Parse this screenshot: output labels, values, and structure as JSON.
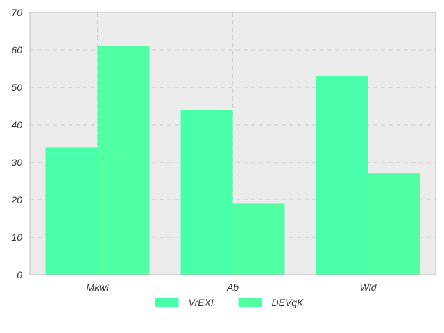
{
  "chart_data": {
    "type": "bar",
    "title": "",
    "xlabel": "",
    "ylabel": "",
    "categories": [
      "Mkwl",
      "Ab",
      "Wld"
    ],
    "series": [
      {
        "name": "VrEXI",
        "values": [
          34,
          44,
          53
        ],
        "color": "#48ffaa"
      },
      {
        "name": "DEVqK",
        "values": [
          61,
          19,
          27
        ],
        "color": "#52ffa3"
      }
    ],
    "ylim": [
      0,
      70
    ],
    "yticks": [
      0,
      10,
      20,
      30,
      40,
      50,
      60,
      70
    ],
    "grid": true,
    "legend_position": "bottom-center",
    "background_color": "#ececec"
  }
}
